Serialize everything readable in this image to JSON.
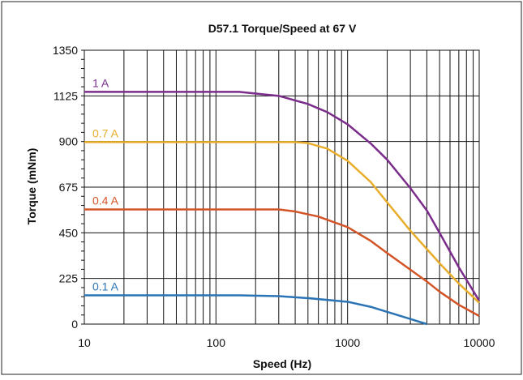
{
  "chart_data": {
    "type": "line",
    "title": "D57.1 Torque/Speed at 67 V",
    "xlabel": "Speed (Hz)",
    "ylabel": "Torque (mNm)",
    "x_scale": "log",
    "xlim": [
      10,
      10000
    ],
    "ylim": [
      0,
      1350
    ],
    "x_ticks": [
      10,
      100,
      1000,
      10000
    ],
    "x_tick_labels": [
      "10",
      "100",
      "1000",
      "10000"
    ],
    "y_ticks": [
      0,
      225,
      450,
      675,
      900,
      1125,
      1350
    ],
    "y_tick_labels": [
      "0",
      "225",
      "450",
      "675",
      "900",
      "1125",
      "1350"
    ],
    "grid": true,
    "legend": "inline labels",
    "series": [
      {
        "name": "1 A",
        "color": "#7b2d8b",
        "x": [
          10,
          150,
          300,
          500,
          700,
          1000,
          1500,
          2000,
          3000,
          4000,
          5000,
          7000,
          10000
        ],
        "y": [
          1145,
          1145,
          1125,
          1085,
          1045,
          985,
          890,
          810,
          670,
          560,
          450,
          280,
          115
        ]
      },
      {
        "name": "0.7 A",
        "color": "#e8ad2a",
        "x": [
          10,
          400,
          500,
          700,
          1000,
          1500,
          2000,
          3000,
          4000,
          5000,
          7000,
          10000
        ],
        "y": [
          897,
          897,
          892,
          865,
          805,
          700,
          600,
          460,
          370,
          300,
          200,
          105
        ]
      },
      {
        "name": "0.4 A",
        "color": "#d35426",
        "x": [
          10,
          300,
          400,
          600,
          1000,
          1500,
          2000,
          3000,
          4000,
          5000,
          7000,
          10000
        ],
        "y": [
          565,
          565,
          555,
          530,
          478,
          410,
          350,
          268,
          210,
          160,
          95,
          40
        ]
      },
      {
        "name": "0.1 A",
        "color": "#2a74b6",
        "x": [
          10,
          150,
          300,
          500,
          1000,
          1500,
          2000,
          3000,
          4000
        ],
        "y": [
          142,
          142,
          138,
          128,
          110,
          85,
          60,
          25,
          0
        ]
      }
    ]
  }
}
